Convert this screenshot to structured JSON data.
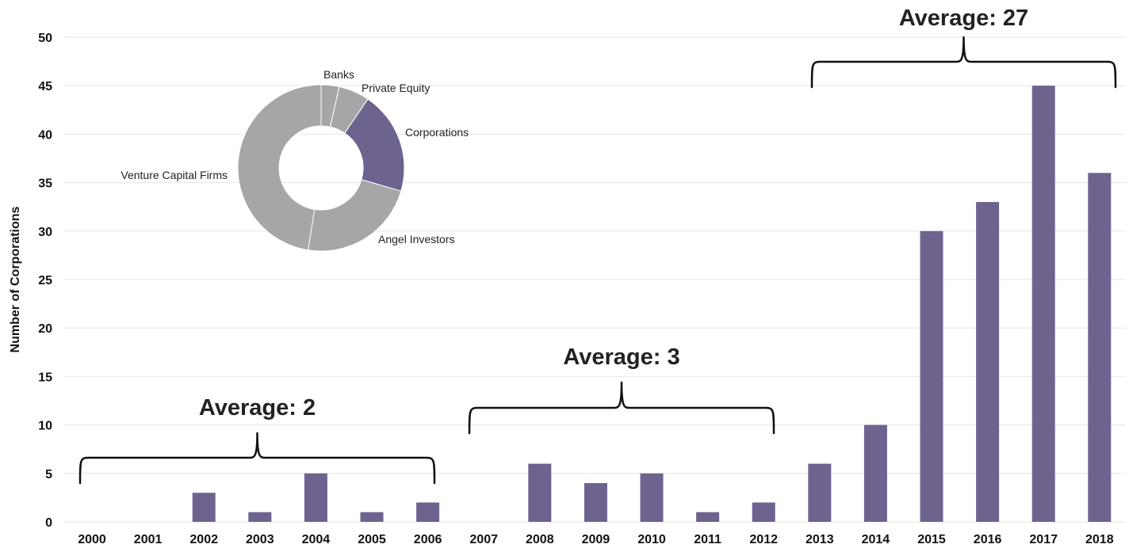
{
  "chart_data": [
    {
      "type": "bar",
      "ylabel": "Number of Corporations",
      "xlabel": "",
      "ylim": [
        0,
        50
      ],
      "yticks": [
        0,
        5,
        10,
        15,
        20,
        25,
        30,
        35,
        40,
        45,
        50
      ],
      "grid": true,
      "categories": [
        "2000",
        "2001",
        "2002",
        "2003",
        "2004",
        "2005",
        "2006",
        "2007",
        "2008",
        "2009",
        "2010",
        "2011",
        "2012",
        "2013",
        "2014",
        "2015",
        "2016",
        "2017",
        "2018"
      ],
      "values": [
        0,
        0,
        3,
        1,
        5,
        1,
        2,
        0,
        6,
        4,
        5,
        1,
        2,
        6,
        10,
        30,
        33,
        45,
        36
      ],
      "bar_color": "#6e638e",
      "annotations": [
        {
          "text": "Average: 2",
          "from": "2000",
          "to": "2006"
        },
        {
          "text": "Average: 3",
          "from": "2007",
          "to": "2012"
        },
        {
          "text": "Average: 27",
          "from": "2013",
          "to": "2018"
        }
      ]
    },
    {
      "type": "pie",
      "style": "donut",
      "slices": [
        {
          "label": "Banks",
          "value": 3.5,
          "color": "#a6a6a6"
        },
        {
          "label": "Private Equity",
          "value": 6,
          "color": "#a6a6a6"
        },
        {
          "label": "Corporations",
          "value": 20,
          "color": "#6e638e"
        },
        {
          "label": "Angel Investors",
          "value": 23,
          "color": "#a6a6a6"
        },
        {
          "label": "Venture Capital Firms",
          "value": 47.5,
          "color": "#a6a6a6"
        }
      ]
    }
  ]
}
